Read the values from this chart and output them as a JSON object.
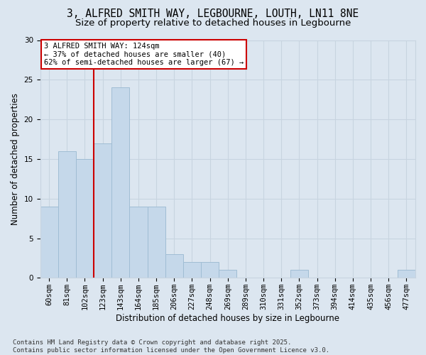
{
  "title": "3, ALFRED SMITH WAY, LEGBOURNE, LOUTH, LN11 8NE",
  "subtitle": "Size of property relative to detached houses in Legbourne",
  "xlabel": "Distribution of detached houses by size in Legbourne",
  "ylabel": "Number of detached properties",
  "categories": [
    "60sqm",
    "81sqm",
    "102sqm",
    "123sqm",
    "143sqm",
    "164sqm",
    "185sqm",
    "206sqm",
    "227sqm",
    "248sqm",
    "269sqm",
    "289sqm",
    "310sqm",
    "331sqm",
    "352sqm",
    "373sqm",
    "394sqm",
    "414sqm",
    "435sqm",
    "456sqm",
    "477sqm"
  ],
  "values": [
    9,
    16,
    15,
    17,
    24,
    9,
    9,
    3,
    2,
    2,
    1,
    0,
    0,
    0,
    1,
    0,
    0,
    0,
    0,
    0,
    1
  ],
  "bar_color": "#c5d8ea",
  "bar_edge_color": "#a0bdd4",
  "grid_color": "#c8d4e0",
  "background_color": "#dce6f0",
  "vline_x_index": 3,
  "vline_color": "#cc0000",
  "annotation_text": "3 ALFRED SMITH WAY: 124sqm\n← 37% of detached houses are smaller (40)\n62% of semi-detached houses are larger (67) →",
  "annotation_box_color": "#ffffff",
  "annotation_box_edge": "#cc0000",
  "ylim": [
    0,
    30
  ],
  "yticks": [
    0,
    5,
    10,
    15,
    20,
    25,
    30
  ],
  "footer": "Contains HM Land Registry data © Crown copyright and database right 2025.\nContains public sector information licensed under the Open Government Licence v3.0.",
  "title_fontsize": 10.5,
  "subtitle_fontsize": 9.5,
  "axis_label_fontsize": 8.5,
  "tick_fontsize": 7.5,
  "annotation_fontsize": 7.5,
  "footer_fontsize": 6.5
}
